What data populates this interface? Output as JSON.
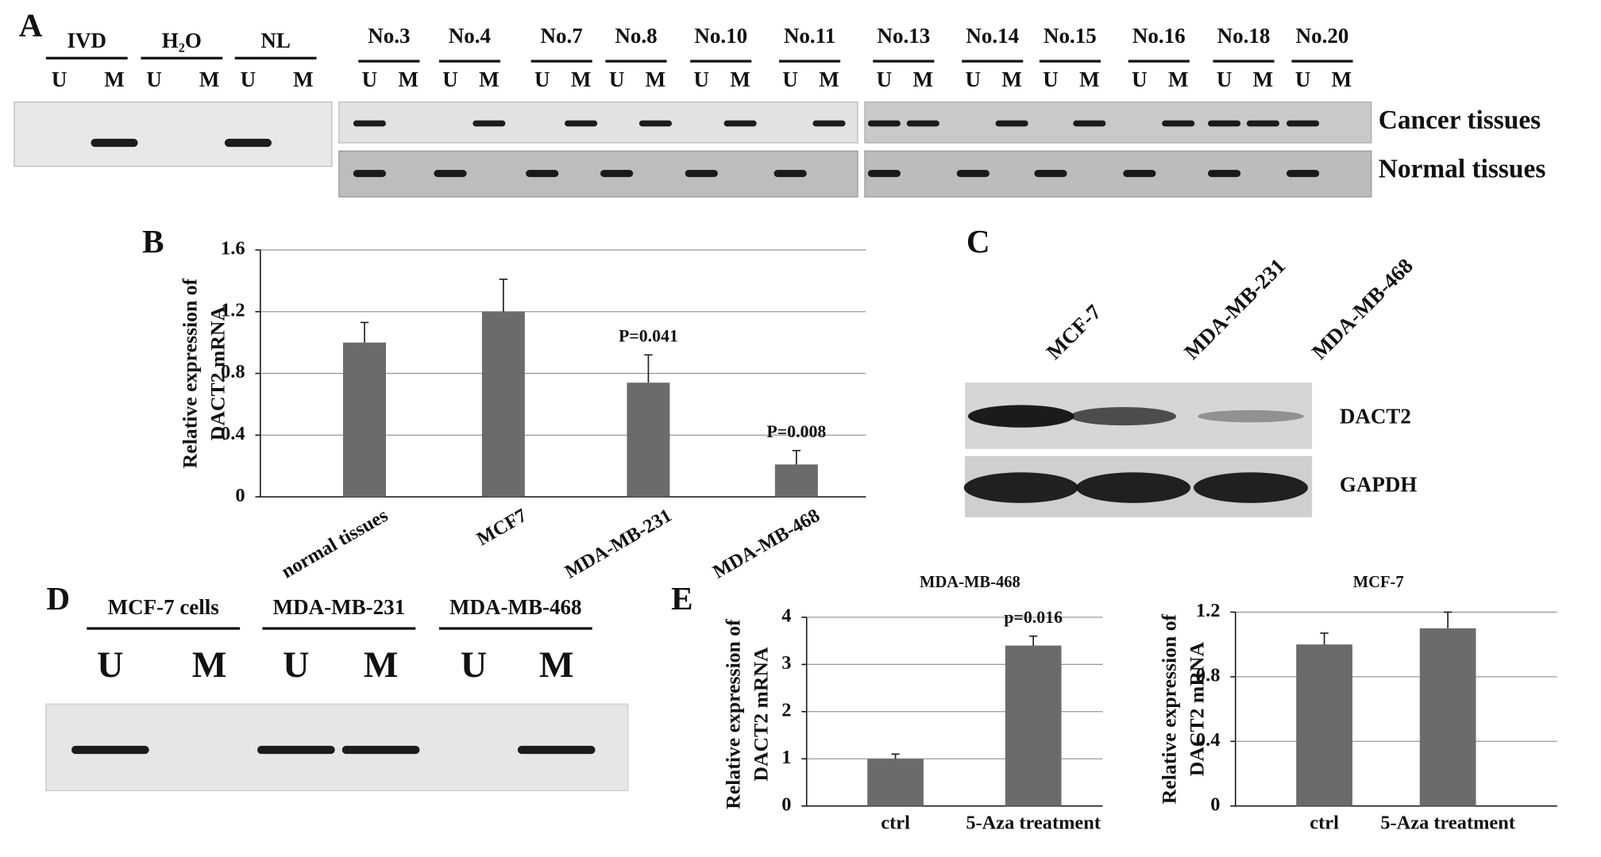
{
  "panel_a": {
    "label": "A",
    "groups": [
      {
        "name": "IVD",
        "lanes": [
          "U",
          "M"
        ]
      },
      {
        "name": "H₂O",
        "lanes": [
          "U",
          "M"
        ]
      },
      {
        "name": "NL",
        "lanes": [
          "U",
          "M"
        ]
      },
      {
        "name": "No.3",
        "lanes": [
          "U",
          "M"
        ]
      },
      {
        "name": "No.4",
        "lanes": [
          "U",
          "M"
        ]
      },
      {
        "name": "No.7",
        "lanes": [
          "U",
          "M"
        ]
      },
      {
        "name": "No.8",
        "lanes": [
          "U",
          "M"
        ]
      },
      {
        "name": "No.10",
        "lanes": [
          "U",
          "M"
        ]
      },
      {
        "name": "No.11",
        "lanes": [
          "U",
          "M"
        ]
      },
      {
        "name": "No.13",
        "lanes": [
          "U",
          "M"
        ]
      },
      {
        "name": "No.14",
        "lanes": [
          "U",
          "M"
        ]
      },
      {
        "name": "No.15",
        "lanes": [
          "U",
          "M"
        ]
      },
      {
        "name": "No.16",
        "lanes": [
          "U",
          "M"
        ]
      },
      {
        "name": "No.18",
        "lanes": [
          "U",
          "M"
        ]
      },
      {
        "name": "No.20",
        "lanes": [
          "U",
          "M"
        ]
      }
    ],
    "rows": [
      "Cancer tissues",
      "Normal tissues"
    ]
  },
  "panel_c": {
    "label": "C",
    "lanes": [
      "MCF-7",
      "MDA-MB-231",
      "MDA-MB-468"
    ],
    "rows": [
      "DACT2",
      "GAPDH"
    ]
  },
  "panel_d": {
    "label": "D",
    "groups": [
      {
        "name": "MCF-7 cells",
        "lanes": [
          "U",
          "M"
        ]
      },
      {
        "name": "MDA-MB-231",
        "lanes": [
          "U",
          "M"
        ]
      },
      {
        "name": "MDA-MB-468",
        "lanes": [
          "U",
          "M"
        ]
      }
    ]
  },
  "chart_data": [
    {
      "type": "bar",
      "panel_label": "B",
      "ylabel": [
        "Relative expression of",
        "DACT2 mRNA"
      ],
      "categories": [
        "normal tissues",
        "MCF7",
        "MDA-MB-231",
        "MDA-MB-468"
      ],
      "values": [
        1.0,
        1.2,
        0.74,
        0.21
      ],
      "errors": [
        0.13,
        0.21,
        0.18,
        0.09
      ],
      "annotations": [
        null,
        null,
        "P=0.041",
        "P=0.008"
      ],
      "color": "#6b6b6b",
      "ylim": [
        0,
        1.6
      ],
      "yticks": [
        0,
        0.4,
        0.8,
        1.2,
        1.6
      ],
      "grid": true
    },
    {
      "type": "bar",
      "panel_label": "E",
      "title": "MDA-MB-468",
      "ylabel": [
        "Relative expression of",
        "DACT2 mRNA"
      ],
      "categories": [
        "ctrl",
        "5-Aza treatment"
      ],
      "values": [
        1.0,
        3.4
      ],
      "errors": [
        0.1,
        0.2
      ],
      "annotations": [
        null,
        "p=0.016"
      ],
      "color": "#6b6b6b",
      "ylim": [
        0,
        4
      ],
      "yticks": [
        0,
        1,
        2,
        3,
        4
      ],
      "grid": true
    },
    {
      "type": "bar",
      "title": "MCF-7",
      "ylabel": [
        "Relative expression of",
        "DACT2 mRNA"
      ],
      "categories": [
        "ctrl",
        "5-Aza treatment"
      ],
      "values": [
        1.0,
        1.1
      ],
      "errors": [
        0.07,
        0.1
      ],
      "color": "#6b6b6b",
      "ylim": [
        0,
        1.2
      ],
      "yticks": [
        0,
        0.4,
        0.8,
        1.2
      ],
      "grid": true
    }
  ]
}
